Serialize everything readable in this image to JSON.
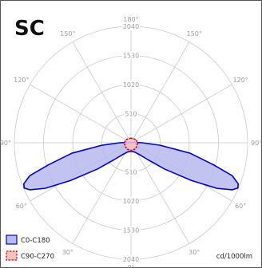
{
  "chart_data": {
    "type": "polar",
    "title": "SC",
    "unit_label": "cd/1000lm",
    "radial_ticks": [
      "510",
      "1020",
      "1530",
      "2040"
    ],
    "r_max": 2040,
    "angle_labels": [
      {
        "deg": 180,
        "text": "180°"
      },
      {
        "deg": 150,
        "text": "150°"
      },
      {
        "deg": -150,
        "text": "150°"
      },
      {
        "deg": 120,
        "text": "120°"
      },
      {
        "deg": -120,
        "text": "120°"
      },
      {
        "deg": 90,
        "text": "90°"
      },
      {
        "deg": -90,
        "text": "90°"
      },
      {
        "deg": 60,
        "text": "60°"
      },
      {
        "deg": -60,
        "text": "60°"
      },
      {
        "deg": 30,
        "text": "30°"
      },
      {
        "deg": -30,
        "text": "30°"
      },
      {
        "deg": 0,
        "text": "0°"
      }
    ],
    "series": [
      {
        "name": "C0-C180",
        "stroke": "#0000cc",
        "fill": "#b8b8f0",
        "dash": false,
        "points": [
          {
            "deg": -180,
            "r": 5
          },
          {
            "deg": -150,
            "r": 5
          },
          {
            "deg": -120,
            "r": 8
          },
          {
            "deg": -100,
            "r": 25
          },
          {
            "deg": -95,
            "r": 60
          },
          {
            "deg": -90,
            "r": 200
          },
          {
            "deg": -85,
            "r": 520
          },
          {
            "deg": -80,
            "r": 1050
          },
          {
            "deg": -75,
            "r": 1500
          },
          {
            "deg": -72,
            "r": 1860
          },
          {
            "deg": -69,
            "r": 2010
          },
          {
            "deg": -67,
            "r": 2030
          },
          {
            "deg": -65,
            "r": 1950
          },
          {
            "deg": -62,
            "r": 1700
          },
          {
            "deg": -58,
            "r": 1250
          },
          {
            "deg": -52,
            "r": 750
          },
          {
            "deg": -45,
            "r": 420
          },
          {
            "deg": -35,
            "r": 250
          },
          {
            "deg": -20,
            "r": 170
          },
          {
            "deg": 0,
            "r": 150
          },
          {
            "deg": 20,
            "r": 170
          },
          {
            "deg": 35,
            "r": 250
          },
          {
            "deg": 45,
            "r": 420
          },
          {
            "deg": 52,
            "r": 750
          },
          {
            "deg": 58,
            "r": 1250
          },
          {
            "deg": 62,
            "r": 1700
          },
          {
            "deg": 65,
            "r": 1950
          },
          {
            "deg": 67,
            "r": 2030
          },
          {
            "deg": 69,
            "r": 2010
          },
          {
            "deg": 72,
            "r": 1860
          },
          {
            "deg": 75,
            "r": 1500
          },
          {
            "deg": 80,
            "r": 1050
          },
          {
            "deg": 85,
            "r": 520
          },
          {
            "deg": 90,
            "r": 200
          },
          {
            "deg": 95,
            "r": 60
          },
          {
            "deg": 100,
            "r": 25
          },
          {
            "deg": 120,
            "r": 8
          },
          {
            "deg": 150,
            "r": 5
          },
          {
            "deg": 180,
            "r": 5
          }
        ]
      },
      {
        "name": "C90-C270",
        "stroke": "#dd0000",
        "fill": "#f3c4c4",
        "dash": true,
        "points": [
          {
            "deg": -180,
            "r": 80
          },
          {
            "deg": -150,
            "r": 85
          },
          {
            "deg": -120,
            "r": 105
          },
          {
            "deg": -90,
            "r": 115
          },
          {
            "deg": -60,
            "r": 120
          },
          {
            "deg": -30,
            "r": 130
          },
          {
            "deg": 0,
            "r": 135
          },
          {
            "deg": 30,
            "r": 130
          },
          {
            "deg": 60,
            "r": 120
          },
          {
            "deg": 90,
            "r": 115
          },
          {
            "deg": 120,
            "r": 105
          },
          {
            "deg": 150,
            "r": 85
          },
          {
            "deg": 180,
            "r": 80
          }
        ]
      }
    ]
  }
}
